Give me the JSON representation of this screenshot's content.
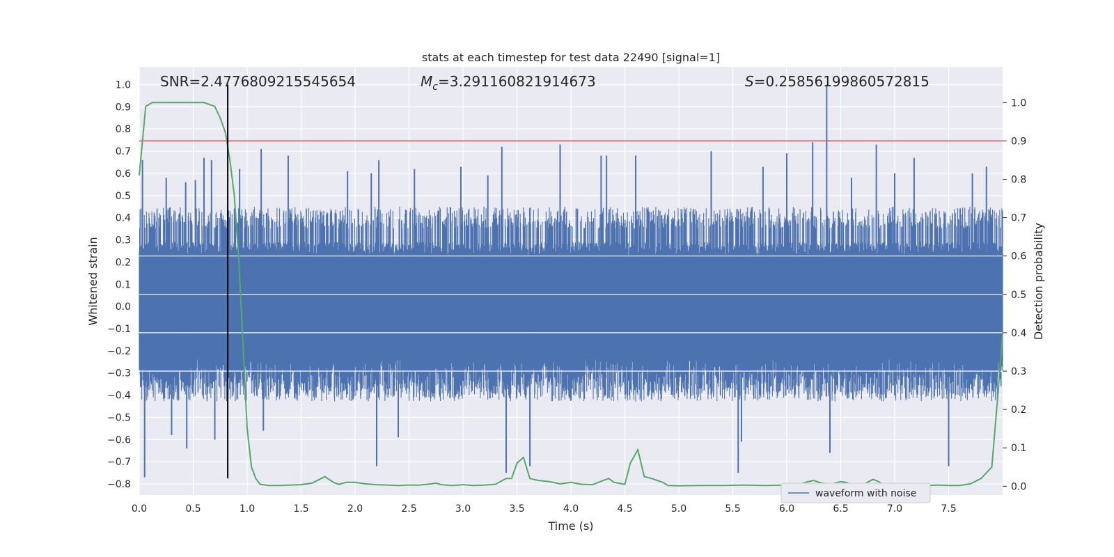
{
  "chart_data": {
    "type": "line",
    "title": "stats at each timestep for test data 22490 [signal=1]",
    "xlabel": "Time (s)",
    "ylabel": "Whitened strain",
    "y2label": "Detection probability",
    "xlim": [
      0.0,
      8.0
    ],
    "ylim": [
      -0.85,
      1.08
    ],
    "y2lim": [
      -0.023,
      1.093
    ],
    "x_ticks": [
      "0.0",
      "0.5",
      "1.0",
      "1.5",
      "2.0",
      "2.5",
      "3.0",
      "3.5",
      "4.0",
      "4.5",
      "5.0",
      "5.5",
      "6.0",
      "6.5",
      "7.0",
      "7.5"
    ],
    "y_ticks": [
      "1.0",
      "0.9",
      "0.8",
      "0.7",
      "0.6",
      "0.5",
      "0.4",
      "0.3",
      "0.2",
      "0.1",
      "0.0",
      "−0.1",
      "−0.2",
      "−0.3",
      "−0.4",
      "−0.5",
      "−0.6",
      "−0.7",
      "−0.8"
    ],
    "y2_ticks": [
      "1.0",
      "0.9",
      "0.8",
      "0.7",
      "0.6",
      "0.5",
      "0.4",
      "0.3",
      "0.2",
      "0.1",
      "0.0"
    ],
    "annotations": {
      "snr": "SNR=2.4776809215545654",
      "mc": "=3.291160821914673",
      "mc_symbol": "M",
      "mc_sub": "c",
      "s": "=0.25856199860572815",
      "s_symbol": "S"
    },
    "legend": {
      "label": "waveform with noise",
      "placement": "lower-right"
    },
    "grid": true,
    "colors": {
      "background": "#eaeaf2",
      "grid": "#ffffff",
      "waveform": "#4c72b0",
      "probability": "#55a868",
      "threshold": "#c44e52",
      "marker": "#000000"
    },
    "series": [
      {
        "name": "waveform with noise",
        "axis": "left",
        "style": "noise-band",
        "core_amplitude": 0.23,
        "typical_peak": 0.45,
        "spikes": [
          {
            "t": 0.03,
            "v": 0.66
          },
          {
            "t": 0.05,
            "v": -0.77
          },
          {
            "t": 0.25,
            "v": 0.58
          },
          {
            "t": 0.3,
            "v": -0.58
          },
          {
            "t": 0.43,
            "v": 0.56
          },
          {
            "t": 0.44,
            "v": -0.64
          },
          {
            "t": 0.52,
            "v": 0.57
          },
          {
            "t": 0.6,
            "v": 0.67
          },
          {
            "t": 0.67,
            "v": 0.66
          },
          {
            "t": 0.7,
            "v": -0.6
          },
          {
            "t": 0.93,
            "v": 0.62
          },
          {
            "t": 1.15,
            "v": -0.56
          },
          {
            "t": 1.13,
            "v": 0.71
          },
          {
            "t": 1.38,
            "v": 0.68
          },
          {
            "t": 1.93,
            "v": 0.61
          },
          {
            "t": 2.15,
            "v": 0.6
          },
          {
            "t": 2.2,
            "v": -0.72
          },
          {
            "t": 2.22,
            "v": 0.66
          },
          {
            "t": 2.4,
            "v": -0.59
          },
          {
            "t": 2.55,
            "v": 0.62
          },
          {
            "t": 2.98,
            "v": 0.63
          },
          {
            "t": 3.23,
            "v": 0.59
          },
          {
            "t": 3.36,
            "v": 0.72
          },
          {
            "t": 3.4,
            "v": -0.75
          },
          {
            "t": 3.62,
            "v": -0.72
          },
          {
            "t": 3.9,
            "v": 0.73
          },
          {
            "t": 4.28,
            "v": 0.68
          },
          {
            "t": 4.33,
            "v": 0.68
          },
          {
            "t": 4.6,
            "v": 0.68
          },
          {
            "t": 5.3,
            "v": 0.7
          },
          {
            "t": 5.55,
            "v": -0.75
          },
          {
            "t": 5.58,
            "v": -0.61
          },
          {
            "t": 5.78,
            "v": 0.63
          },
          {
            "t": 6.0,
            "v": 0.69
          },
          {
            "t": 6.24,
            "v": 0.74
          },
          {
            "t": 6.37,
            "v": 1.0
          },
          {
            "t": 6.4,
            "v": -0.66
          },
          {
            "t": 6.6,
            "v": 0.58
          },
          {
            "t": 6.83,
            "v": 0.73
          },
          {
            "t": 7.0,
            "v": 0.6
          },
          {
            "t": 7.18,
            "v": 0.67
          },
          {
            "t": 7.5,
            "v": -0.72
          },
          {
            "t": 7.72,
            "v": 0.6
          },
          {
            "t": 7.85,
            "v": 0.63
          }
        ]
      },
      {
        "name": "detection probability",
        "axis": "right",
        "x": [
          0.0,
          0.06,
          0.12,
          0.2,
          0.3,
          0.4,
          0.5,
          0.6,
          0.7,
          0.75,
          0.8,
          0.84,
          0.88,
          0.92,
          0.96,
          1.0,
          1.04,
          1.08,
          1.12,
          1.2,
          1.3,
          1.4,
          1.5,
          1.6,
          1.65,
          1.72,
          1.8,
          1.85,
          1.92,
          2.0,
          2.1,
          2.2,
          2.3,
          2.4,
          2.5,
          2.6,
          2.7,
          2.75,
          2.8,
          2.9,
          3.0,
          3.1,
          3.2,
          3.3,
          3.4,
          3.45,
          3.5,
          3.56,
          3.62,
          3.7,
          3.8,
          3.9,
          4.0,
          4.1,
          4.2,
          4.3,
          4.35,
          4.4,
          4.5,
          4.55,
          4.62,
          4.68,
          4.75,
          4.85,
          4.9,
          5.0,
          5.2,
          5.4,
          5.6,
          5.8,
          6.0,
          6.1,
          6.2,
          6.25,
          6.3,
          6.4,
          6.5,
          6.55,
          6.6,
          6.7,
          6.8,
          6.85,
          6.9,
          7.0,
          7.1,
          7.2,
          7.3,
          7.4,
          7.5,
          7.6,
          7.7,
          7.8,
          7.9,
          7.96,
          8.0
        ],
        "y": [
          0.81,
          0.99,
          1.0,
          1.0,
          1.0,
          1.0,
          1.0,
          1.0,
          0.99,
          0.96,
          0.92,
          0.85,
          0.76,
          0.6,
          0.38,
          0.15,
          0.05,
          0.02,
          0.005,
          0.002,
          0.002,
          0.003,
          0.004,
          0.008,
          0.015,
          0.025,
          0.01,
          0.005,
          0.01,
          0.01,
          0.006,
          0.004,
          0.003,
          0.002,
          0.003,
          0.003,
          0.006,
          0.008,
          0.004,
          0.002,
          0.004,
          0.002,
          0.003,
          0.005,
          0.02,
          0.02,
          0.06,
          0.075,
          0.02,
          0.015,
          0.012,
          0.006,
          0.01,
          0.005,
          0.004,
          0.015,
          0.02,
          0.01,
          0.005,
          0.06,
          0.095,
          0.025,
          0.02,
          0.01,
          0.002,
          0.001,
          0.002,
          0.002,
          0.003,
          0.002,
          0.003,
          0.004,
          0.012,
          0.015,
          0.01,
          0.005,
          0.012,
          0.01,
          0.005,
          0.003,
          0.018,
          0.012,
          0.003,
          0.002,
          0.003,
          0.002,
          0.002,
          0.003,
          0.002,
          0.002,
          0.006,
          0.02,
          0.05,
          0.25,
          0.4
        ]
      },
      {
        "name": "threshold",
        "axis": "right",
        "style": "hline",
        "value": 0.9
      },
      {
        "name": "marker",
        "axis": "left",
        "style": "vline",
        "value": 0.82,
        "ymin": -0.775,
        "ymax": 1.0
      }
    ]
  }
}
